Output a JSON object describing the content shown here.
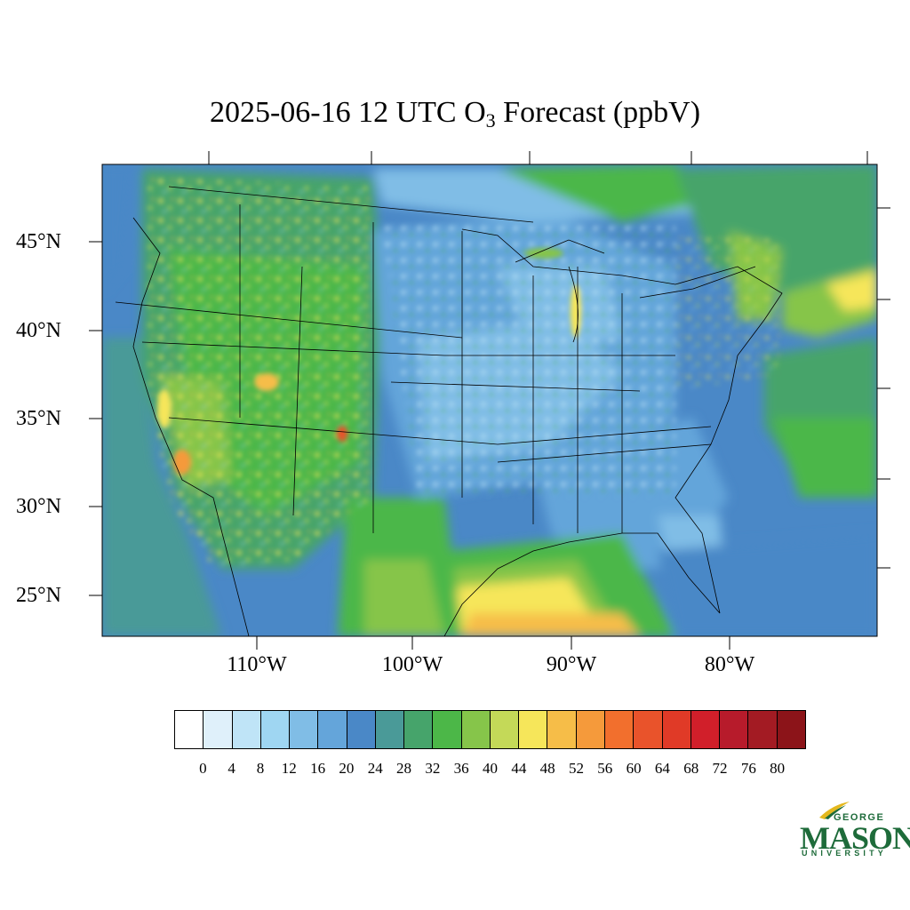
{
  "title_prefix": "2025-06-16 12 UTC O",
  "title_sub": "3",
  "title_suffix": " Forecast (ppbV)",
  "lat_labels": [
    "45°N",
    "40°N",
    "35°N",
    "30°N",
    "25°N"
  ],
  "lon_labels": [
    "110°W",
    "100°W",
    "90°W",
    "80°W"
  ],
  "colorbar": {
    "colors": [
      "#ffffff",
      "#dff0fa",
      "#bfe4f7",
      "#9fd6f2",
      "#80bde6",
      "#64a5da",
      "#4a88c7",
      "#4a9a98",
      "#46a46b",
      "#4cb748",
      "#86c54a",
      "#c4d958",
      "#f6e65a",
      "#f6bd48",
      "#f59a3b",
      "#f26f2d",
      "#e9532b",
      "#e03a27",
      "#d11f2a",
      "#b71b2b",
      "#a31b23",
      "#8c1419"
    ],
    "ticks": [
      "0",
      "4",
      "8",
      "12",
      "16",
      "20",
      "24",
      "28",
      "32",
      "36",
      "40",
      "44",
      "48",
      "52",
      "56",
      "60",
      "64",
      "68",
      "72",
      "76",
      "80"
    ]
  },
  "logo": {
    "top": "GEORGE",
    "main": "MASON",
    "bottom": "UNIVERSITY",
    "color": "#1e6b3a",
    "accent": "#e4b81d"
  }
}
